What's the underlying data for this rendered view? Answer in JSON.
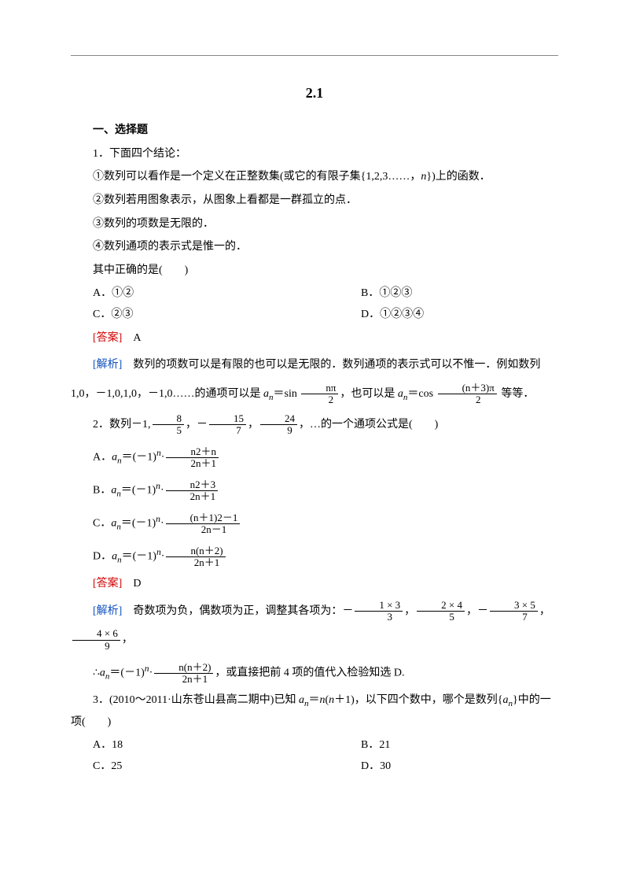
{
  "title": "2.1",
  "section": "一、选择题",
  "q1": {
    "stem": "1．下面四个结论：",
    "s1_a": "①数列可以看作是一个定义在正整数集(或它的有限子集{1,2,3……，",
    "s1_b": "})上的函数．",
    "s2": "②数列若用图象表示，从图象上看都是一群孤立的点．",
    "s3": "③数列的项数是无限的．",
    "s4": "④数列通项的表示式是惟一的．",
    "prompt": "其中正确的是(　　)",
    "A": "A．①②",
    "B": "B．①②③",
    "C": "C．②③",
    "D": "D．①②③④",
    "ans_label": "[答案]",
    "ans": "A",
    "ana_label": "[解析]",
    "ana_a": "数列的项数可以是有限的也可以是无限的．数列通项的表示式可以不惟一．例如数列 1,0，－1,0,1,0，－1,0……的通项可以是 ",
    "ana_b": "，也可以是 ",
    "ana_c": " 等等．",
    "sin": "sin",
    "cos": "cos",
    "f1n": "nπ",
    "f1d": "2",
    "f2n": "(n＋3)π",
    "f2d": "2"
  },
  "q2": {
    "stem_a": "2．数列－1,",
    "stem_b": "，－",
    "stem_c": "，",
    "stem_d": "，…的一个通项公式是(　　)",
    "f1n": "8",
    "f1d": "5",
    "f2n": "15",
    "f2d": "7",
    "f3n": "24",
    "f3d": "9",
    "A_pre": "A．",
    "B_pre": "B．",
    "C_pre": "C．",
    "D_pre": "D．",
    "an_eq": "＝(－1)",
    "An": "n2＋n",
    "Ad": "2n＋1",
    "Bn": "n2＋3",
    "Bd": "2n＋1",
    "Cn": "(n＋1)2－1",
    "Cd": "2n－1",
    "Dn": "n(n＋2)",
    "Dd": "2n＋1",
    "ans_label": "[答案]",
    "ans": "D",
    "ana_label": "[解析]",
    "ana_a": "奇数项为负，偶数项为正，调整其各项为：－",
    "ana_b": "，",
    "ana_c": "，－",
    "ana_d": "，",
    "ana_e": "，",
    "t1n": "1 × 3",
    "t1d": "3",
    "t2n": "2 × 4",
    "t2d": "5",
    "t3n": "3 × 5",
    "t3d": "7",
    "t4n": "4 × 6",
    "t4d": "9",
    "therefore": "∴",
    "concl": "，或直接把前 4 项的值代入检验知选 D.",
    "resn": "n(n＋2)",
    "resd": "2n＋1"
  },
  "q3": {
    "stem_a": "3．(2010～2011·山东苍山县高二期中)已知 ",
    "stem_b": "＝",
    "stem_c": "(",
    "stem_d": "＋1)，以下四个数中，哪个是数列{",
    "stem_e": "}中的一项(　　)",
    "A": "A．18",
    "B": "B．21",
    "C": "C．25",
    "D": "D．30"
  },
  "sym": {
    "an": "a",
    "n": "n",
    "dot": "·"
  }
}
